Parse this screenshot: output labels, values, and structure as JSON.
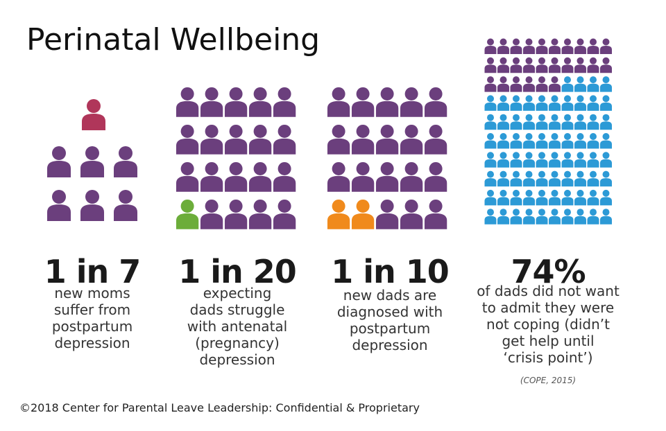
{
  "title": "Perinatal Wellbeing",
  "panels": [
    {
      "stat": "1 in 7",
      "lines": [
        "new moms",
        "suffer from",
        "postpartum",
        "depression"
      ]
    },
    {
      "stat": "1 in 20",
      "lines": [
        "expecting",
        "dads struggle",
        "with antenatal",
        "(pregnancy)",
        "depression"
      ]
    },
    {
      "stat": "1 in 10",
      "lines": [
        "new dads are",
        "diagnosed with",
        "postpartum",
        "depression"
      ]
    },
    {
      "stat": "74%",
      "lines": [
        "of dads did not want",
        "to admit they were",
        "not coping (didn’t",
        "get help until",
        "‘crisis point’)"
      ]
    }
  ],
  "citation": "(COPE, 2015)",
  "footer": "©2018 Center for Parental Leave Leadership: Confidential & Proprietary"
}
